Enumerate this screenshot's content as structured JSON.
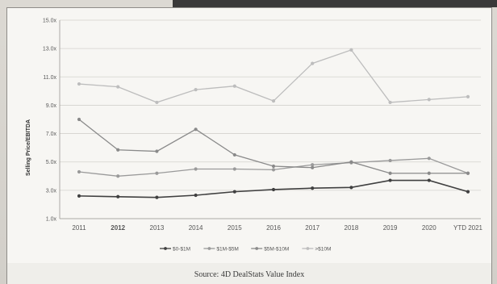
{
  "chart_data": {
    "type": "line",
    "title": "",
    "xlabel": "",
    "ylabel": "Selling Price/EBITDA",
    "categories": [
      "2011",
      "2012",
      "2013",
      "2014",
      "2015",
      "2016",
      "2017",
      "2018",
      "2019",
      "2020",
      "YTD 2021"
    ],
    "y_ticks": [
      "15.0x",
      "13.0x",
      "11.0x",
      "9.0x",
      "7.0x",
      "5.0x",
      "3.0x",
      "1.0x"
    ],
    "ylim": [
      1,
      15
    ],
    "grid": true,
    "legend_position": "bottom",
    "series": [
      {
        "name": "$0-$1M",
        "color": "#404040",
        "values": [
          2.6,
          2.55,
          2.5,
          2.65,
          2.9,
          3.05,
          3.15,
          3.2,
          3.7,
          3.7,
          2.9
        ]
      },
      {
        "name": "$1M-$5M",
        "color": "#9a9a9a",
        "values": [
          4.3,
          4.0,
          4.2,
          4.5,
          4.5,
          4.45,
          4.8,
          4.95,
          5.1,
          5.25,
          4.2
        ]
      },
      {
        "name": "$5M-$10M",
        "color": "#8a8a8a",
        "values": [
          8.0,
          5.85,
          5.75,
          7.3,
          5.5,
          4.7,
          4.6,
          5.0,
          4.2,
          4.2,
          4.2
        ]
      },
      {
        "name": ">$10M",
        "color": "#bdbdbd",
        "values": [
          10.5,
          10.3,
          9.2,
          10.1,
          10.35,
          9.3,
          11.95,
          12.9,
          9.2,
          9.4,
          9.6
        ]
      }
    ]
  },
  "source_text": "Source: 4D DealStats Value Index"
}
